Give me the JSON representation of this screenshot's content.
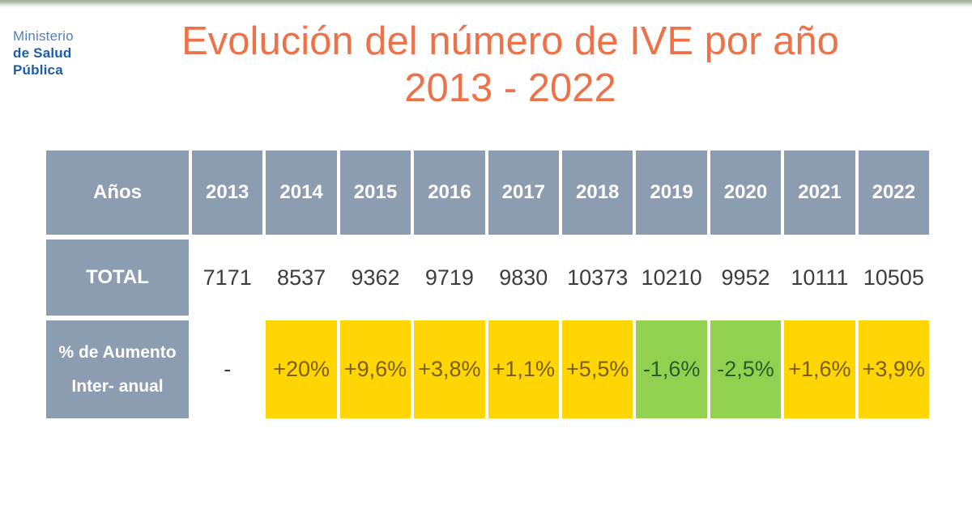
{
  "colors": {
    "title": "#ED7249",
    "logo_light": "#5380BE",
    "logo_dark": "#1D5CAB",
    "header_bg": "#8C9DB1",
    "header_text": "#FFFFFF",
    "value_text": "#3D3D3D",
    "yellow_bg": "#FFD504",
    "yellow_text": "#7A5E00",
    "green_bg": "#92D050",
    "green_text": "#2E5B2E",
    "top_bar_dark": "#9FAA9C",
    "top_bar_light": "#FBFCF9"
  },
  "logo": {
    "line1": "Ministerio",
    "line2": "de Salud",
    "line3": "Pública"
  },
  "title": {
    "line1": "Evolución del número de IVE por año",
    "line2": "2013 - 2022"
  },
  "table": {
    "header": {
      "label": "Años",
      "years": [
        "2013",
        "2014",
        "2015",
        "2016",
        "2017",
        "2018",
        "2019",
        "2020",
        "2021",
        "2022"
      ]
    },
    "total_row": {
      "label": "TOTAL",
      "values": [
        "7171",
        "8537",
        "9362",
        "9719",
        "9830",
        "10373",
        "10210",
        "9952",
        "10111",
        "10505"
      ]
    },
    "pct_row": {
      "label_line1": "% de Aumento",
      "label_line2": "Inter- anual",
      "values": [
        "-",
        "+20%",
        "+9,6%",
        "+3,8%",
        "+1,1%",
        "+5,5%",
        "-1,6%",
        "-2,5%",
        "+1,6%",
        "+3,9%"
      ],
      "styles": [
        "plain",
        "yellow",
        "yellow",
        "yellow",
        "yellow",
        "yellow",
        "green",
        "green",
        "yellow",
        "yellow"
      ]
    }
  },
  "chart_data": {
    "type": "table",
    "title": "Evolución del número de IVE por año 2013 - 2022",
    "categories": [
      "2013",
      "2014",
      "2015",
      "2016",
      "2017",
      "2018",
      "2019",
      "2020",
      "2021",
      "2022"
    ],
    "series": [
      {
        "name": "TOTAL",
        "values": [
          7171,
          8537,
          9362,
          9719,
          9830,
          10373,
          10210,
          9952,
          10111,
          10505
        ]
      },
      {
        "name": "% de Aumento Inter-anual",
        "values": [
          null,
          20,
          9.6,
          3.8,
          1.1,
          5.5,
          -1.6,
          -2.5,
          1.6,
          3.9
        ]
      }
    ]
  }
}
